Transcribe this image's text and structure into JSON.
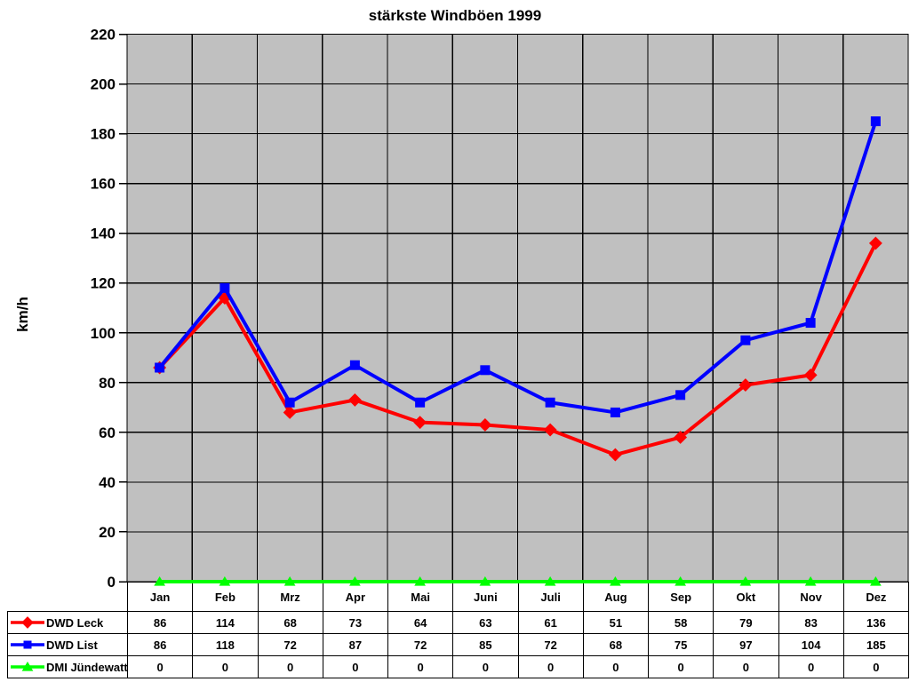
{
  "title": "stärkste Windböen 1999",
  "chart_data": {
    "type": "line",
    "categories": [
      "Jan",
      "Feb",
      "Mrz",
      "Apr",
      "Mai",
      "Juni",
      "Juli",
      "Aug",
      "Sep",
      "Okt",
      "Nov",
      "Dez"
    ],
    "series": [
      {
        "name": "DWD Leck",
        "color": "#FF0000",
        "marker": "diamond",
        "values": [
          86,
          114,
          68,
          73,
          64,
          63,
          61,
          51,
          58,
          79,
          83,
          136
        ]
      },
      {
        "name": "DWD List",
        "color": "#0000FF",
        "marker": "square",
        "values": [
          86,
          118,
          72,
          87,
          72,
          85,
          72,
          68,
          75,
          97,
          104,
          185
        ]
      },
      {
        "name": "DMI Jündewatt",
        "color": "#00FF00",
        "marker": "triangle",
        "values": [
          0,
          0,
          0,
          0,
          0,
          0,
          0,
          0,
          0,
          0,
          0,
          0
        ]
      }
    ],
    "xlabel": "",
    "ylabel": "km/h",
    "ylim": [
      0,
      220
    ],
    "ytick_step": 20,
    "grid": true,
    "plot_bg": "#C0C0C0",
    "gridline_color": "#000000",
    "legend_position": "table-left"
  }
}
